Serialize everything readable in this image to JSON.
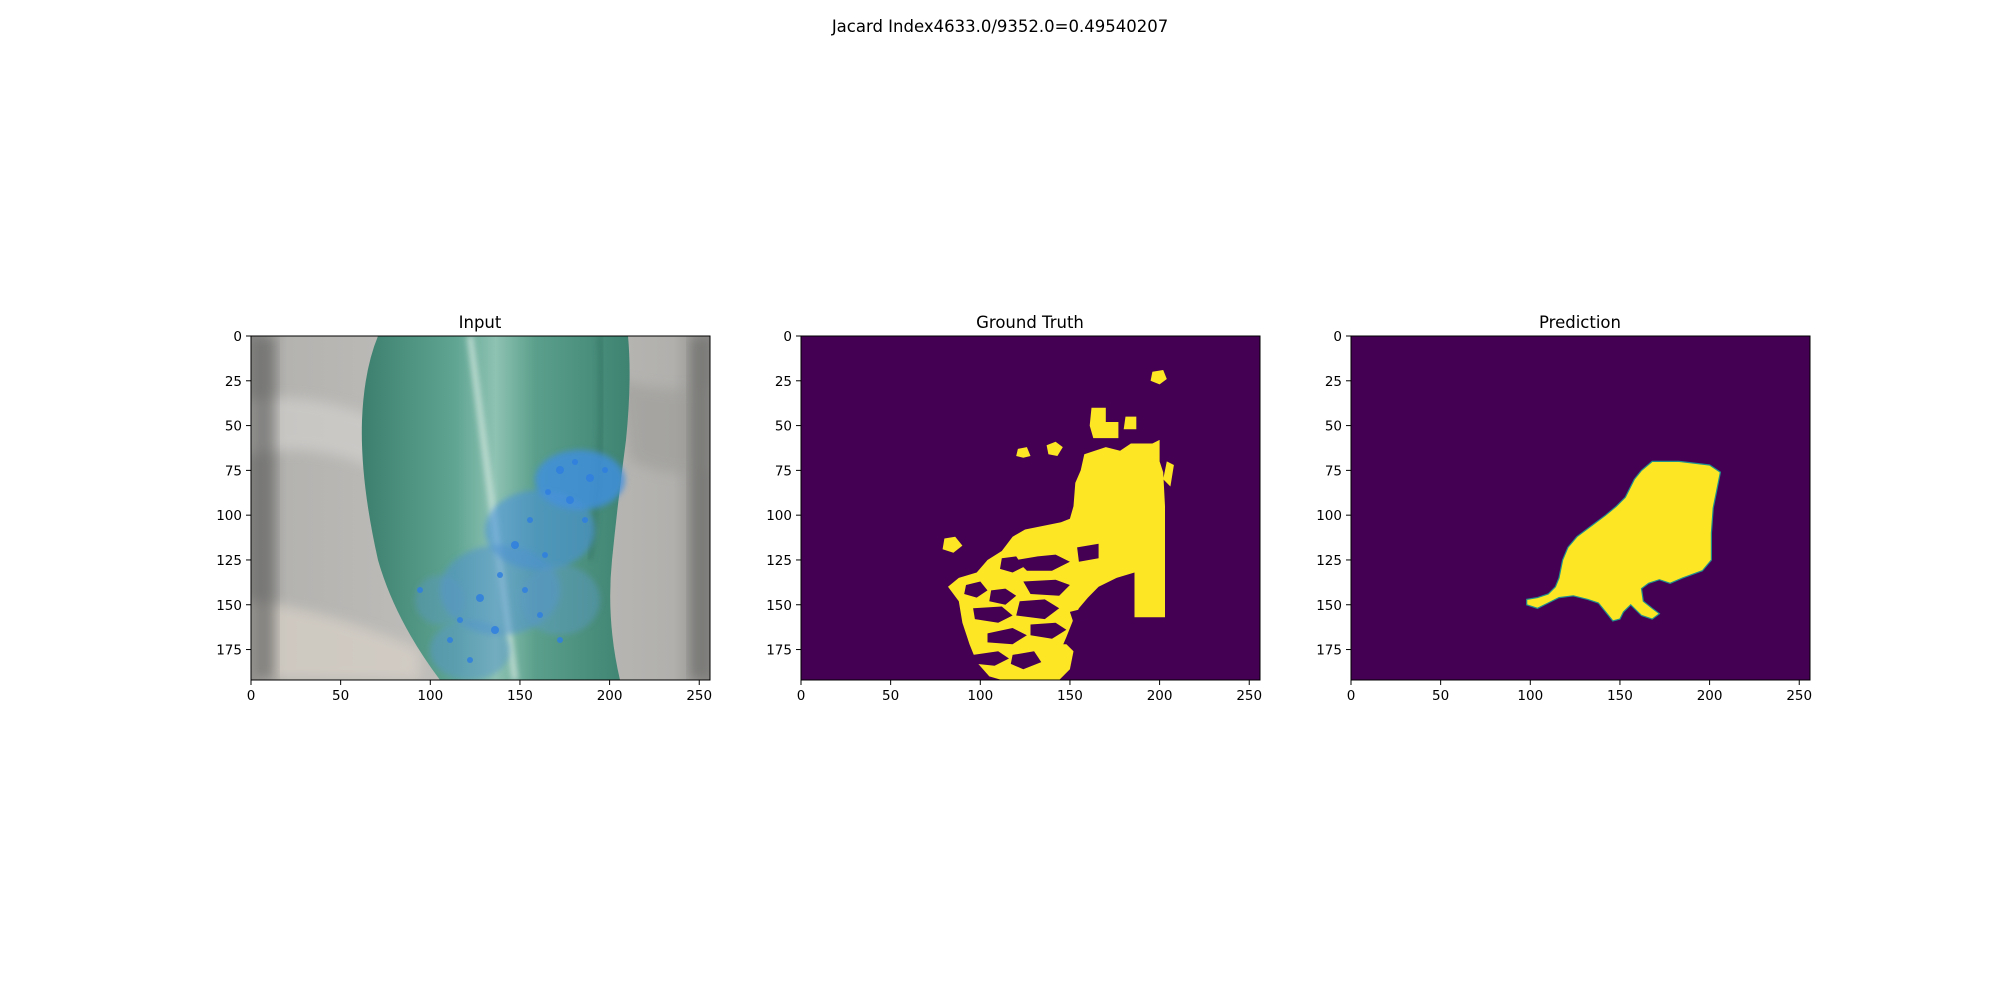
{
  "figure": {
    "suptitle": "Jacard Index4633.0/9352.0=0.49540207"
  },
  "colors": {
    "background": "#ffffff",
    "mask_background": "#440154",
    "mask_foreground": "#fde725",
    "mask_edge": "#21918c"
  },
  "chart_data": [
    {
      "type": "image",
      "title": "Input",
      "xlim": [
        0,
        256
      ],
      "ylim": [
        192,
        0
      ],
      "x_ticks": [
        "0",
        "50",
        "100",
        "150",
        "200",
        "250"
      ],
      "y_ticks": [
        "0",
        "25",
        "50",
        "75",
        "100",
        "125",
        "150",
        "175"
      ],
      "image_description_colors": [
        "#a9a9a6",
        "#5f9e8c",
        "#3f8fe0"
      ]
    },
    {
      "type": "heatmap",
      "title": "Ground Truth",
      "xlim": [
        0,
        256
      ],
      "ylim": [
        192,
        0
      ],
      "x_ticks": [
        "0",
        "50",
        "100",
        "150",
        "200",
        "250"
      ],
      "y_ticks": [
        "0",
        "25",
        "50",
        "75",
        "100",
        "125",
        "150",
        "175"
      ],
      "mask_regions": [
        {
          "points": [
            [
              158,
              66
            ],
            [
              170,
              62
            ],
            [
              178,
              64
            ],
            [
              184,
              60
            ],
            [
              196,
              60
            ],
            [
              200,
              58
            ],
            [
              200,
              70
            ],
            [
              202,
              76
            ],
            [
              203,
              95
            ],
            [
              203,
              157
            ],
            [
              186,
              157
            ],
            [
              186,
              132
            ],
            [
              176,
              135
            ],
            [
              166,
              140
            ],
            [
              160,
              146
            ],
            [
              155,
              152
            ],
            [
              152,
              158
            ],
            [
              148,
              168
            ],
            [
              145,
              175
            ],
            [
              142,
              180
            ],
            [
              137,
              192
            ],
            [
              112,
              192
            ],
            [
              105,
              190
            ],
            [
              98,
              182
            ],
            [
              94,
              172
            ],
            [
              90,
              160
            ],
            [
              88,
              148
            ],
            [
              82,
              140
            ],
            [
              88,
              135
            ],
            [
              98,
              132
            ],
            [
              104,
              125
            ],
            [
              112,
              120
            ],
            [
              118,
              112
            ],
            [
              125,
              108
            ],
            [
              135,
              106
            ],
            [
              145,
              104
            ],
            [
              150,
              102
            ],
            [
              152,
              95
            ],
            [
              153,
              82
            ],
            [
              156,
              75
            ]
          ]
        },
        {
          "points": [
            [
              132,
              176
            ],
            [
              136,
              172
            ],
            [
              148,
              172
            ],
            [
              152,
              176
            ],
            [
              150,
              186
            ],
            [
              144,
              192
            ],
            [
              130,
              192
            ],
            [
              128,
              184
            ]
          ]
        },
        {
          "points": [
            [
              162,
              40
            ],
            [
              170,
              40
            ],
            [
              170,
              48
            ],
            [
              177,
              48
            ],
            [
              177,
              57
            ],
            [
              163,
              57
            ],
            [
              161,
              50
            ]
          ]
        },
        {
          "points": [
            [
              181,
              45
            ],
            [
              187,
              45
            ],
            [
              187,
              52
            ],
            [
              180,
              52
            ]
          ]
        },
        {
          "points": [
            [
              196,
              20
            ],
            [
              202,
              19
            ],
            [
              204,
              24
            ],
            [
              200,
              27
            ],
            [
              195,
              25
            ]
          ]
        },
        {
          "points": [
            [
              137,
              61
            ],
            [
              142,
              59
            ],
            [
              146,
              62
            ],
            [
              143,
              67
            ],
            [
              138,
              66
            ]
          ]
        },
        {
          "points": [
            [
              121,
              63
            ],
            [
              126,
              62
            ],
            [
              128,
              67
            ],
            [
              124,
              68
            ],
            [
              120,
              67
            ]
          ]
        },
        {
          "points": [
            [
              80,
              113
            ],
            [
              86,
              112
            ],
            [
              90,
              117
            ],
            [
              85,
              121
            ],
            [
              79,
              119
            ]
          ]
        },
        {
          "points": [
            [
              204,
              70
            ],
            [
              208,
              72
            ],
            [
              206,
              84
            ],
            [
              202,
              80
            ]
          ]
        }
      ],
      "hole_regions": [
        {
          "points": [
            [
              120,
              125
            ],
            [
              132,
              123
            ],
            [
              142,
              122
            ],
            [
              150,
              126
            ],
            [
              140,
              131
            ],
            [
              126,
              131
            ]
          ]
        },
        {
          "points": [
            [
              154,
              118
            ],
            [
              166,
              116
            ],
            [
              166,
              124
            ],
            [
              155,
              126
            ]
          ]
        },
        {
          "points": [
            [
              92,
              139
            ],
            [
              100,
              137
            ],
            [
              104,
              142
            ],
            [
              98,
              146
            ],
            [
              91,
              144
            ]
          ]
        },
        {
          "points": [
            [
              106,
              142
            ],
            [
              114,
              141
            ],
            [
              120,
              145
            ],
            [
              114,
              150
            ],
            [
              105,
              148
            ]
          ]
        },
        {
          "points": [
            [
              124,
              137
            ],
            [
              142,
              136
            ],
            [
              150,
              139
            ],
            [
              144,
              145
            ],
            [
              128,
              144
            ]
          ]
        },
        {
          "points": [
            [
              96,
              152
            ],
            [
              112,
              151
            ],
            [
              118,
              156
            ],
            [
              110,
              160
            ],
            [
              97,
              158
            ]
          ]
        },
        {
          "points": [
            [
              122,
              148
            ],
            [
              136,
              147
            ],
            [
              144,
              152
            ],
            [
              136,
              158
            ],
            [
              120,
              156
            ]
          ]
        },
        {
          "points": [
            [
              104,
              166
            ],
            [
              118,
              163
            ],
            [
              126,
              167
            ],
            [
              118,
              172
            ],
            [
              104,
              171
            ]
          ]
        },
        {
          "points": [
            [
              128,
              161
            ],
            [
              142,
              160
            ],
            [
              148,
              164
            ],
            [
              140,
              169
            ],
            [
              128,
              167
            ]
          ]
        },
        {
          "points": [
            [
              96,
              178
            ],
            [
              110,
              176
            ],
            [
              116,
              180
            ],
            [
              108,
              184
            ],
            [
              98,
              183
            ]
          ]
        },
        {
          "points": [
            [
              118,
              178
            ],
            [
              130,
              176
            ],
            [
              134,
              182
            ],
            [
              124,
              186
            ],
            [
              117,
              183
            ]
          ]
        },
        {
          "points": [
            [
              112,
              124
            ],
            [
              120,
              123
            ],
            [
              124,
              129
            ],
            [
              118,
              132
            ],
            [
              111,
              130
            ]
          ]
        },
        {
          "points": [
            [
              150,
              154
            ],
            [
              158,
              152
            ],
            [
              160,
              158
            ],
            [
              152,
              160
            ]
          ]
        }
      ]
    },
    {
      "type": "heatmap",
      "title": "Prediction",
      "xlim": [
        0,
        256
      ],
      "ylim": [
        192,
        0
      ],
      "x_ticks": [
        "0",
        "50",
        "100",
        "150",
        "200",
        "250"
      ],
      "y_ticks": [
        "0",
        "25",
        "50",
        "75",
        "100",
        "125",
        "150",
        "175"
      ],
      "mask_regions": [
        {
          "points": [
            [
              168,
              70
            ],
            [
              183,
              70
            ],
            [
              200,
              72
            ],
            [
              206,
              76
            ],
            [
              204,
              86
            ],
            [
              202,
              96
            ],
            [
              201,
              110
            ],
            [
              201,
              125
            ],
            [
              196,
              131
            ],
            [
              185,
              135
            ],
            [
              178,
              138
            ],
            [
              172,
              136
            ],
            [
              166,
              138
            ],
            [
              162,
              141
            ],
            [
              163,
              148
            ],
            [
              168,
              152
            ],
            [
              172,
              155
            ],
            [
              168,
              158
            ],
            [
              162,
              156
            ],
            [
              156,
              150
            ],
            [
              152,
              154
            ],
            [
              150,
              158
            ],
            [
              146,
              159
            ],
            [
              142,
              154
            ],
            [
              138,
              149
            ],
            [
              132,
              147
            ],
            [
              124,
              145
            ],
            [
              116,
              146
            ],
            [
              110,
              149
            ],
            [
              104,
              152
            ],
            [
              98,
              150
            ],
            [
              98,
              147
            ],
            [
              104,
              146
            ],
            [
              110,
              144
            ],
            [
              114,
              140
            ],
            [
              116,
              135
            ],
            [
              118,
              125
            ],
            [
              121,
              118
            ],
            [
              126,
              112
            ],
            [
              134,
              106
            ],
            [
              142,
              100
            ],
            [
              148,
              95
            ],
            [
              153,
              90
            ],
            [
              158,
              80
            ],
            [
              162,
              75
            ]
          ]
        }
      ],
      "hole_regions": []
    }
  ]
}
